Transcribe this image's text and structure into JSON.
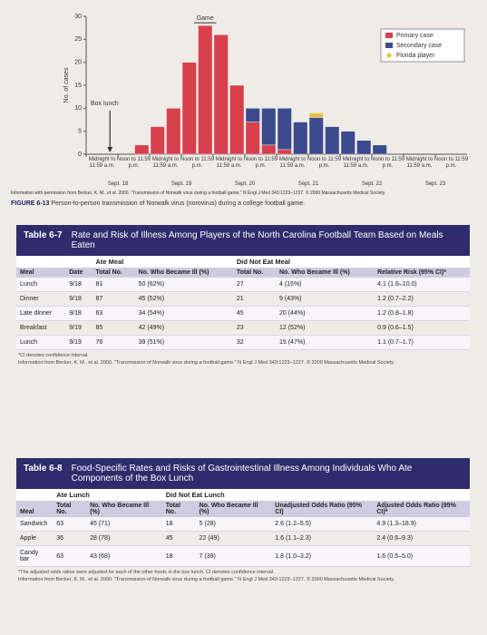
{
  "chart_data": {
    "type": "bar",
    "stacked": true,
    "y_label": "No. of cases",
    "categories": [
      "Midnight to 11:59 a.m.",
      null,
      "Noon to 11:59 p.m.",
      null,
      "Midnight to 11:59 a.m.",
      null,
      "Noon to 11:59 p.m.",
      null,
      "Midnight to 11:59 a.m.",
      null,
      "Noon to 11:59 p.m.",
      null,
      "Midnight to 11:59 a.m.",
      null,
      "Noon to 11:59 p.m.",
      null,
      "Midnight to 11:59 a.m.",
      null,
      "Noon to 11:59 p.m.",
      null,
      "Midnight to 11:59 a.m.",
      null,
      "Noon to 11:59 p.m.",
      null
    ],
    "dates": [
      "Sept. 18",
      "Sept. 19",
      "Sept. 20",
      "Sept. 21",
      "Sept. 22",
      "Sept. 23"
    ],
    "series": [
      {
        "name": "Primary case",
        "color": "#d8404c",
        "values": [
          0,
          0,
          0,
          2,
          6,
          10,
          20,
          28,
          26,
          15,
          7,
          2,
          1,
          0,
          0,
          0,
          0,
          0,
          0,
          0,
          0,
          0,
          0,
          0
        ]
      },
      {
        "name": "Secondary case",
        "color": "#3c4a8e",
        "values": [
          0,
          0,
          0,
          0,
          0,
          0,
          0,
          0,
          0,
          0,
          3,
          8,
          9,
          7,
          8,
          6,
          5,
          3,
          2,
          0,
          0,
          0,
          0,
          0
        ]
      },
      {
        "name": "Florida player",
        "color": "#e6c23a",
        "values": [
          0,
          0,
          0,
          0,
          0,
          0,
          0,
          0,
          0,
          0,
          0,
          0,
          0,
          0,
          1,
          0,
          0,
          0,
          0,
          0,
          0,
          0,
          0,
          0
        ]
      }
    ],
    "ylim": [
      0,
      30
    ],
    "yticks": [
      0,
      5,
      10,
      15,
      20,
      25,
      30
    ],
    "annotations": [
      "Box lunch",
      "Game"
    ],
    "legend": "top-right",
    "caption_label": "FIGURE 6-13",
    "caption": "Person-to-person transmission of Norwalk virus (norovirus) during a college football game.",
    "credit": "Information with permission from Becker, K. M., et al. 2000. \"Transmission of Norwalk virus during a football game.\" N Engl J Med 343:1223–1227. © 2000 Massachusetts Medical Society."
  },
  "tables": [
    {
      "label": "Table 6-7",
      "title": "Rate and Risk of Illness Among Players of the North Carolina Football Team Based on Meals Eaten",
      "groups": [
        "Ate Meal",
        "Did Not Eat Meal"
      ],
      "columns": [
        "Meal",
        "Date",
        "Total No.",
        "No. Who Became Ill (%)",
        "Total No.",
        "No. Who Became Ill (%)",
        "Relative Risk (95% CI)*"
      ],
      "rows": [
        [
          "Lunch",
          "9/18",
          "81",
          "50 (62%)",
          "27",
          "4 (15%)",
          "4.1 (1.6–10.0)"
        ],
        [
          "Dinner",
          "9/18",
          "87",
          "45 (52%)",
          "21",
          "9 (43%)",
          "1.2 (0.7–2.2)"
        ],
        [
          "Late dinner",
          "9/18",
          "63",
          "34 (54%)",
          "45",
          "20 (44%)",
          "1.2 (0.8–1.8)"
        ],
        [
          "Breakfast",
          "9/19",
          "85",
          "42 (49%)",
          "23",
          "12 (52%)",
          "0.9 (0.6–1.5)"
        ],
        [
          "Lunch",
          "9/19",
          "76",
          "39 (51%)",
          "32",
          "15 (47%)",
          "1.1 (0.7–1.7)"
        ]
      ],
      "notes": [
        "*CI denotes confidence interval.",
        "Information from Becker, K. M., et al. 2000. \"Transmission of Norwalk virus during a football game.\" N Engl J Med 343:1223–1227. © 2000 Massachusetts Medical Society."
      ]
    },
    {
      "label": "Table 6-8",
      "title": "Food-Specific Rates and Risks of Gastrointestinal Illness Among Individuals Who Ate Components of the Box Lunch",
      "groups": [
        "Ate Lunch",
        "Did Not Eat Lunch"
      ],
      "columns": [
        "Meal",
        "Total No.",
        "No. Who Became Ill (%)",
        "Total No.",
        "No. Who Became Ill (%)",
        "Unadjusted Odds Ratio (95% CI)",
        "Adjusted Odds Ratio (95% CI)*"
      ],
      "rows": [
        [
          "Sandwich",
          "63",
          "45 (71)",
          "18",
          "5 (28)",
          "2.6 (1.2–5.5)",
          "4.9 (1.3–18.9)"
        ],
        [
          "Apple",
          "36",
          "28 (78)",
          "45",
          "22 (49)",
          "1.6 (1.1–2.3)",
          "2.4 (0.6–9.3)"
        ],
        [
          "Candy bar",
          "63",
          "43 (68)",
          "18",
          "7 (39)",
          "1.8 (1.0–3.2)",
          "1.6 (0.5–5.0)"
        ]
      ],
      "notes": [
        "*The adjusted odds ratios were adjusted for each of the other foods in the box lunch. CI denotes confidence interval.",
        "Information from Becker, K. M., et al. 2000. \"Transmission of Norwalk virus during a football game.\" N Engl J Med 343:1223–1227. © 2000 Massachusetts Medical Society."
      ]
    }
  ]
}
